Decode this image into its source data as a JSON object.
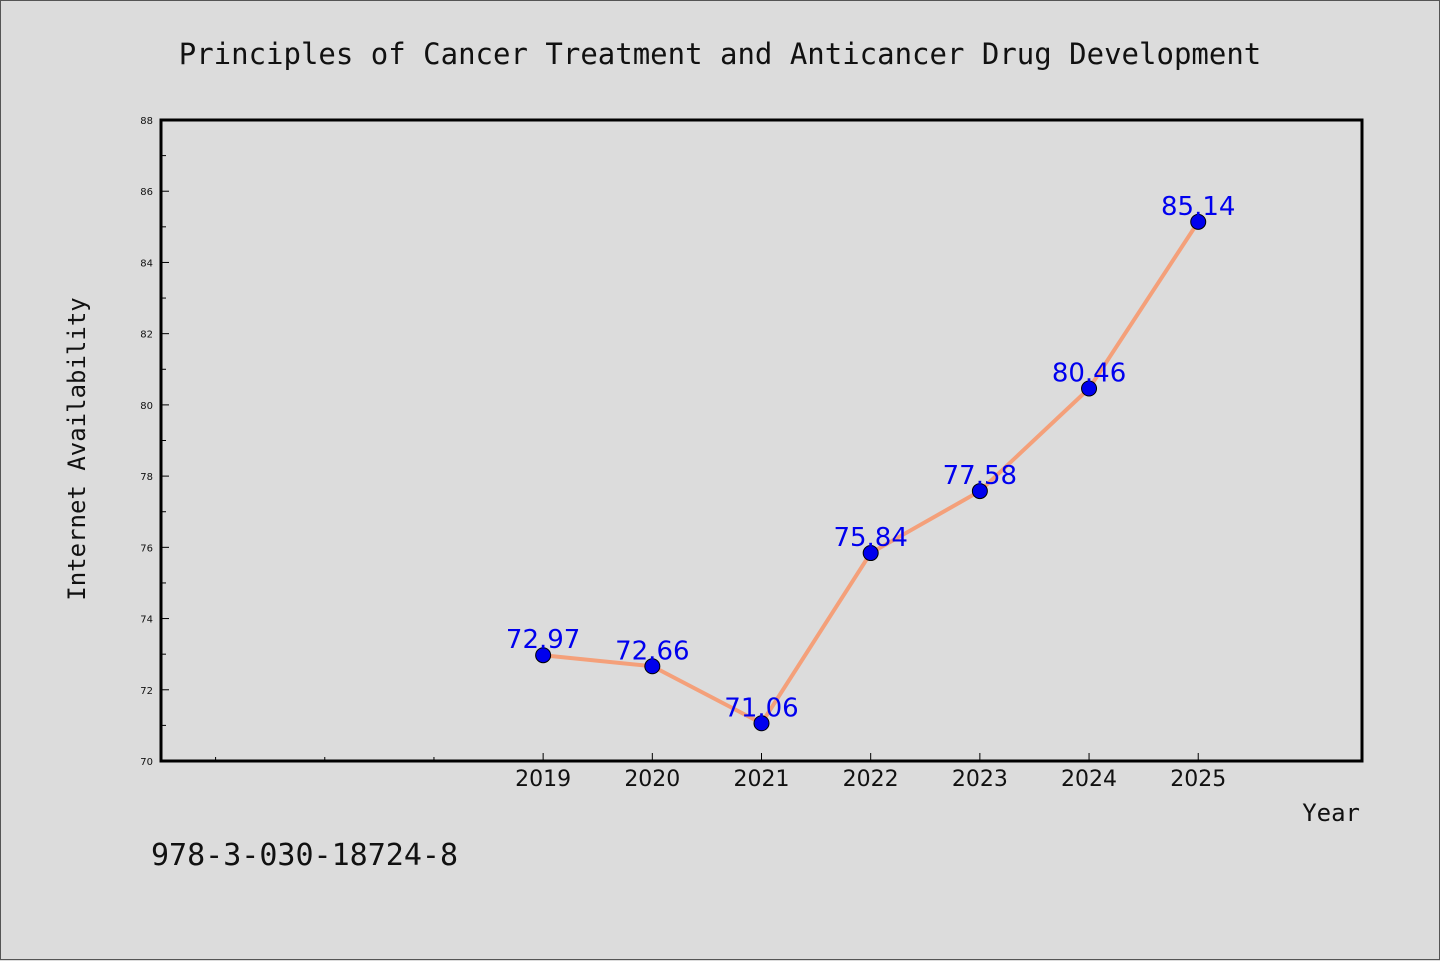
{
  "chart_data": {
    "type": "line",
    "title": "Principles of Cancer Treatment and Anticancer Drug Development",
    "xlabel": "Year",
    "ylabel": "Internet Availability",
    "x": [
      2019,
      2020,
      2021,
      2022,
      2023,
      2024,
      2025
    ],
    "x_tick_labels": [
      "2019",
      "2020",
      "2021",
      "2022",
      "2023",
      "2024",
      "2025"
    ],
    "xlim": [
      2015.5,
      2026.5
    ],
    "values": [
      72.97,
      72.66,
      71.06,
      75.84,
      77.58,
      80.46,
      85.14
    ],
    "data_labels": [
      "72.97",
      "72.66",
      "71.06",
      "75.84",
      "77.58",
      "80.46",
      "85.14"
    ],
    "ylim": [
      70,
      88
    ],
    "y_tick_labels": [
      "70",
      "72",
      "74",
      "76",
      "78",
      "80",
      "82",
      "84",
      "86",
      "88"
    ],
    "grid": false,
    "line_color": "#f4a07a",
    "marker_color": "#0000ee",
    "label_color": "#0000ee"
  },
  "footer_text": "978-3-030-18724-8"
}
